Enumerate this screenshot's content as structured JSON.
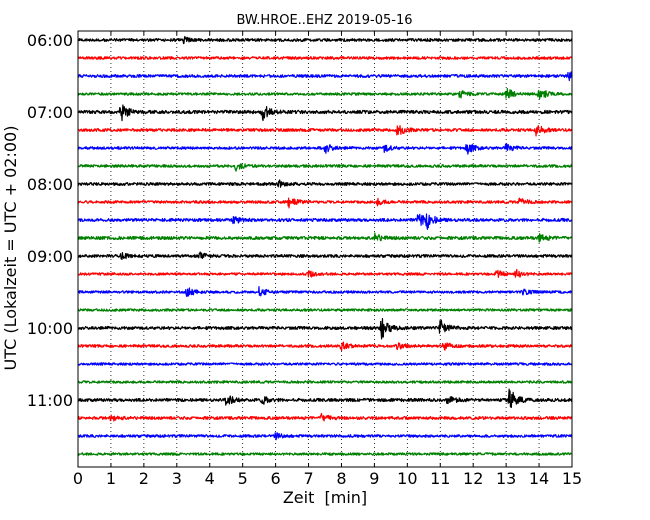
{
  "chart_data": {
    "type": "line",
    "title": "BW.HROE..EHZ 2019-05-16",
    "xlabel": "Zeit  [min]",
    "ylabel": "UTC (Lokalzeit = UTC + 02:00)",
    "xlim": [
      0,
      15
    ],
    "x_ticks": [
      "0",
      "1",
      "2",
      "3",
      "4",
      "5",
      "6",
      "7",
      "8",
      "9",
      "10",
      "11",
      "12",
      "13",
      "14",
      "15"
    ],
    "y_ticks": [
      "06:00",
      "07:00",
      "08:00",
      "09:00",
      "10:00",
      "11:00"
    ],
    "grid": "vertical dotted",
    "rows_per_hour": 4,
    "row_start": "06:00",
    "row_colors": [
      "#000000",
      "#ff0000",
      "#0000ff",
      "#008000"
    ],
    "series": [
      {
        "row": "06:00",
        "noise": 1.4,
        "events": [
          {
            "t": 3.2,
            "amp": 3
          }
        ]
      },
      {
        "row": "06:15",
        "noise": 1.3,
        "events": []
      },
      {
        "row": "06:30",
        "noise": 1.4,
        "events": [
          {
            "t": 14.9,
            "amp": 4
          }
        ]
      },
      {
        "row": "06:45",
        "noise": 1.2,
        "events": [
          {
            "t": 11.6,
            "amp": 4
          },
          {
            "t": 13.0,
            "amp": 6
          },
          {
            "t": 14.0,
            "amp": 7
          }
        ]
      },
      {
        "row": "07:00",
        "noise": 1.6,
        "events": [
          {
            "t": 1.3,
            "amp": 9
          },
          {
            "t": 5.6,
            "amp": 8
          }
        ]
      },
      {
        "row": "07:15",
        "noise": 1.4,
        "events": [
          {
            "t": 9.7,
            "amp": 6
          },
          {
            "t": 13.9,
            "amp": 6
          }
        ]
      },
      {
        "row": "07:30",
        "noise": 1.3,
        "events": [
          {
            "t": 7.5,
            "amp": 5
          },
          {
            "t": 9.3,
            "amp": 4
          },
          {
            "t": 11.8,
            "amp": 6
          },
          {
            "t": 13.0,
            "amp": 4
          }
        ]
      },
      {
        "row": "07:45",
        "noise": 1.3,
        "events": [
          {
            "t": 4.8,
            "amp": 4
          }
        ]
      },
      {
        "row": "08:00",
        "noise": 1.4,
        "events": [
          {
            "t": 6.1,
            "amp": 4
          }
        ]
      },
      {
        "row": "08:15",
        "noise": 1.3,
        "events": [
          {
            "t": 6.4,
            "amp": 5
          },
          {
            "t": 9.1,
            "amp": 3
          },
          {
            "t": 13.4,
            "amp": 4
          }
        ]
      },
      {
        "row": "08:30",
        "noise": 1.5,
        "events": [
          {
            "t": 4.7,
            "amp": 4
          },
          {
            "t": 10.3,
            "amp": 8
          },
          {
            "t": 10.6,
            "amp": 7
          }
        ]
      },
      {
        "row": "08:45",
        "noise": 1.5,
        "events": [
          {
            "t": 9.0,
            "amp": 4
          },
          {
            "t": 14.0,
            "amp": 4
          }
        ]
      },
      {
        "row": "09:00",
        "noise": 1.4,
        "events": [
          {
            "t": 1.3,
            "amp": 3
          },
          {
            "t": 3.7,
            "amp": 3
          }
        ]
      },
      {
        "row": "09:15",
        "noise": 1.2,
        "events": [
          {
            "t": 7.0,
            "amp": 3
          },
          {
            "t": 12.7,
            "amp": 4
          },
          {
            "t": 13.3,
            "amp": 4
          }
        ]
      },
      {
        "row": "09:30",
        "noise": 1.2,
        "events": [
          {
            "t": 3.3,
            "amp": 5
          },
          {
            "t": 5.5,
            "amp": 5
          },
          {
            "t": 13.5,
            "amp": 3
          }
        ]
      },
      {
        "row": "09:45",
        "noise": 1.2,
        "events": []
      },
      {
        "row": "10:00",
        "noise": 1.5,
        "events": [
          {
            "t": 9.2,
            "amp": 11
          },
          {
            "t": 11.0,
            "amp": 8
          }
        ]
      },
      {
        "row": "10:15",
        "noise": 1.3,
        "events": [
          {
            "t": 8.0,
            "amp": 4
          },
          {
            "t": 9.7,
            "amp": 3
          },
          {
            "t": 11.1,
            "amp": 4
          }
        ]
      },
      {
        "row": "10:30",
        "noise": 1.2,
        "events": []
      },
      {
        "row": "10:45",
        "noise": 1.2,
        "events": []
      },
      {
        "row": "11:00",
        "noise": 1.5,
        "events": [
          {
            "t": 4.5,
            "amp": 5
          },
          {
            "t": 5.6,
            "amp": 4
          },
          {
            "t": 11.2,
            "amp": 5
          },
          {
            "t": 13.1,
            "amp": 12
          }
        ]
      },
      {
        "row": "11:15",
        "noise": 1.4,
        "events": [
          {
            "t": 1.0,
            "amp": 3
          },
          {
            "t": 7.4,
            "amp": 4
          }
        ]
      },
      {
        "row": "11:30",
        "noise": 1.3,
        "events": [
          {
            "t": 6.0,
            "amp": 3
          }
        ]
      },
      {
        "row": "11:45",
        "noise": 1.2,
        "events": []
      }
    ]
  }
}
